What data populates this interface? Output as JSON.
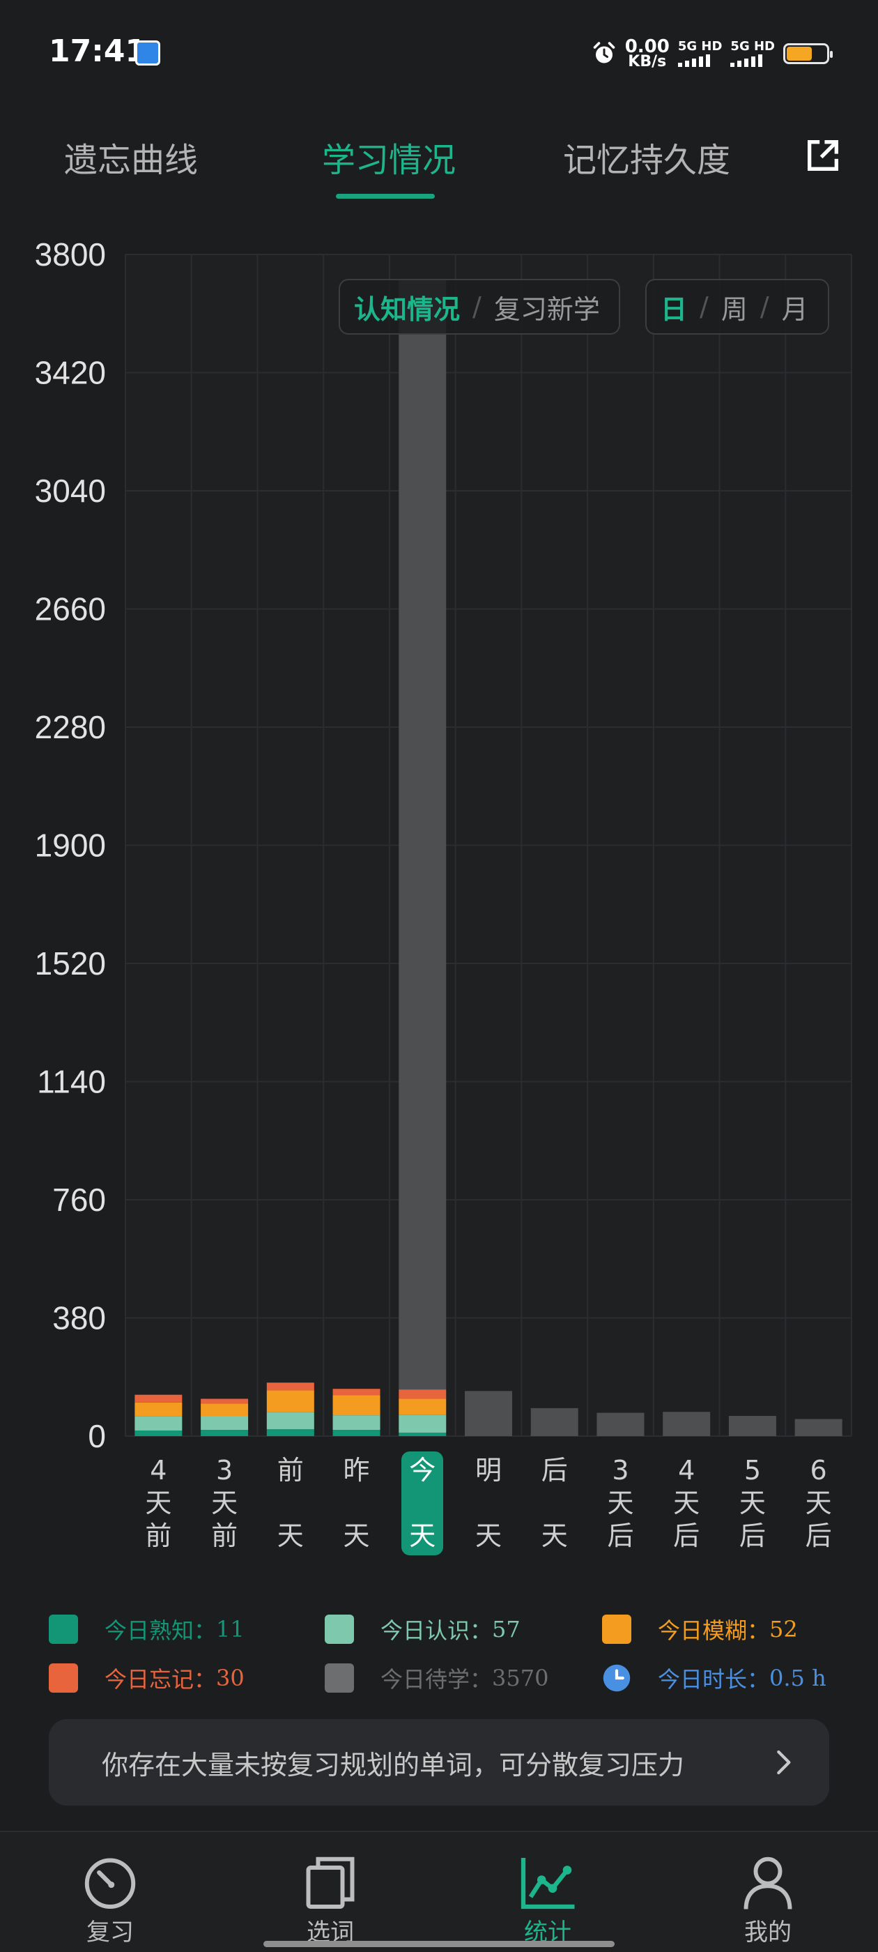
{
  "status_bar": {
    "time": "17:41",
    "net_speed_value": "0.00",
    "net_speed_unit": "KB/s",
    "sim1": "5G HD",
    "sim2": "5G HD",
    "battery_level": 0.65,
    "icons": [
      "app-badge-icon",
      "alarm-icon",
      "signal-icon",
      "battery-icon"
    ]
  },
  "top_tabs": [
    {
      "label": "遗忘曲线",
      "active": false
    },
    {
      "label": "学习情况",
      "active": true
    },
    {
      "label": "记忆持久度",
      "active": false
    }
  ],
  "toggles": {
    "mode": {
      "options": [
        "认知情况",
        "复习新学"
      ],
      "selected": "认知情况",
      "separator": "/"
    },
    "period": {
      "options": [
        "日",
        "周",
        "月"
      ],
      "selected": "日",
      "separator": "/"
    }
  },
  "chart_data": {
    "type": "bar",
    "stacked": true,
    "ylim": [
      0,
      3800
    ],
    "yticks": [
      "3800",
      "3420",
      "3040",
      "2660",
      "2280",
      "1900",
      "1520",
      "1140",
      "760",
      "380",
      "0"
    ],
    "categories": [
      "4天前",
      "3天前",
      "前天",
      "昨天",
      "今天",
      "明天",
      "后天",
      "3天后",
      "4天后",
      "5天后",
      "6天后"
    ],
    "category_lines": [
      [
        "4",
        "天",
        "前"
      ],
      [
        "3",
        "天",
        "前"
      ],
      [
        "前",
        "",
        "天"
      ],
      [
        "昨",
        "",
        "天"
      ],
      [
        "今",
        "",
        "天"
      ],
      [
        "明",
        "",
        "天"
      ],
      [
        "后",
        "",
        "天"
      ],
      [
        "3",
        "天",
        "后"
      ],
      [
        "4",
        "天",
        "后"
      ],
      [
        "5",
        "天",
        "后"
      ],
      [
        "6",
        "天",
        "后"
      ]
    ],
    "selected_category": "今天",
    "series": [
      {
        "color": "#139676",
        "values": [
          18,
          20,
          22,
          20,
          11,
          0,
          0,
          0,
          0,
          0,
          0
        ]
      },
      {
        "color": "#7ec8ad",
        "values": [
          45,
          45,
          55,
          47,
          57,
          0,
          0,
          0,
          0,
          0,
          0
        ]
      },
      {
        "color": "#f39c1f",
        "values": [
          45,
          40,
          70,
          65,
          52,
          0,
          0,
          0,
          0,
          0,
          0
        ]
      },
      {
        "color": "#e8643c",
        "values": [
          25,
          15,
          25,
          20,
          30,
          0,
          0,
          0,
          0,
          0,
          0
        ]
      },
      {
        "color": "#4e4f51",
        "values": [
          0,
          0,
          0,
          0,
          3570,
          145,
          90,
          75,
          78,
          65,
          55
        ]
      }
    ]
  },
  "legend": [
    {
      "label": "今日熟知：",
      "value": "11",
      "color": "#139676",
      "icon": "swatch"
    },
    {
      "label": "今日认识：",
      "value": "57",
      "color": "#7ec8ad",
      "icon": "swatch"
    },
    {
      "label": "今日模糊：",
      "value": "52",
      "color": "#f39c1f",
      "icon": "swatch"
    },
    {
      "label": "今日忘记：",
      "value": "30",
      "color": "#e8643c",
      "icon": "swatch"
    },
    {
      "label": "今日待学：",
      "value": "3570",
      "color": "#6d6e70",
      "icon": "swatch"
    },
    {
      "label": "今日时长：",
      "value": "0.5 h",
      "color": "#4a90e2",
      "icon": "clock-icon"
    }
  ],
  "hint": {
    "text": "你存在大量未按复习规划的单词，可分散复习压力"
  },
  "bottom_nav": [
    {
      "label": "复习",
      "icon": "gauge-icon",
      "active": false
    },
    {
      "label": "选词",
      "icon": "cards-icon",
      "active": false
    },
    {
      "label": "统计",
      "icon": "chart-line-icon",
      "active": true
    },
    {
      "label": "我的",
      "icon": "person-icon",
      "active": false
    }
  ]
}
